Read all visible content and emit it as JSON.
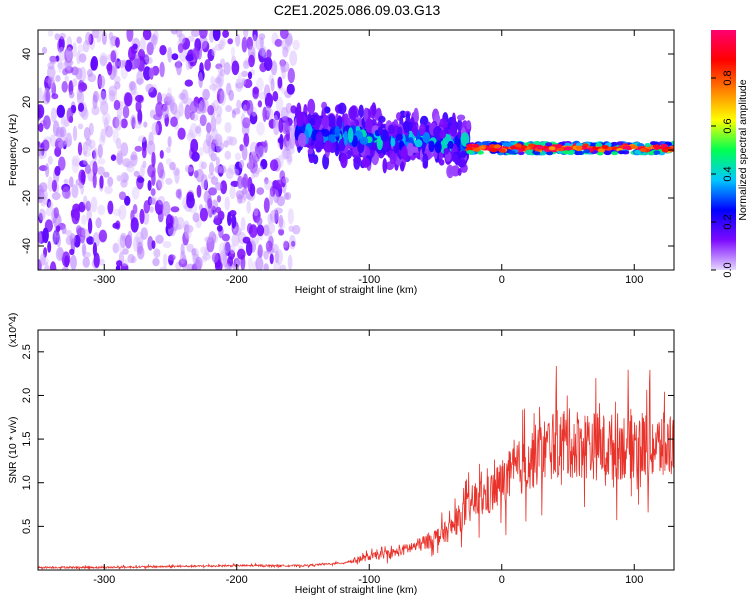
{
  "title": "C2E1.2025.086.09.03.G13",
  "colors": {
    "snr_line": "#e8322a",
    "spectrogram_low": "#c9b8f2",
    "spectrogram_mid": "#5a16e6",
    "colorbar_stops": [
      "#e6d8ff",
      "#7c0aff",
      "#0000ff",
      "#00c8ff",
      "#00ff50",
      "#ffff00",
      "#ff7f00",
      "#ff0000",
      "#ff0070"
    ]
  },
  "chart_data": [
    {
      "type": "heatmap",
      "title": "",
      "xlabel": "Height of straight line (km)",
      "ylabel": "Frequency (Hz)",
      "xlim": [
        -350,
        130
      ],
      "ylim": [
        -50,
        50
      ],
      "xticks": [
        -300,
        -200,
        -100,
        0,
        100
      ],
      "yticks": [
        -40,
        -20,
        0,
        20,
        40
      ],
      "colorbar": {
        "label": "Normalized spectral amplitude",
        "range": [
          0,
          1
        ],
        "ticks": [
          "0.0",
          "0.2",
          "0.4",
          "0.6",
          "0.8"
        ]
      },
      "regions": [
        {
          "x_range": [
            -350,
            -155
          ],
          "y_range": [
            -50,
            50
          ],
          "amplitude": 0.05,
          "note_level": "broad noise"
        },
        {
          "x_range": [
            -155,
            -25
          ],
          "y_range": [
            -12,
            12
          ],
          "amplitude": 0.25,
          "trend_y": [
            8,
            2
          ]
        },
        {
          "x_range": [
            -25,
            130
          ],
          "y_range": [
            -3,
            4
          ],
          "amplitude": 0.85
        }
      ]
    },
    {
      "type": "line",
      "title": "",
      "xlabel": "Height of straight line (km)",
      "ylabel": "SNR (10 * v/v)",
      "y_multiplier": "(x10^4)",
      "xlim": [
        -350,
        130
      ],
      "ylim": [
        0,
        2.75
      ],
      "xticks": [
        -300,
        -200,
        -100,
        0,
        100
      ],
      "yticks": [
        "0.5",
        "1.0",
        "1.5",
        "2.0",
        "2.5"
      ],
      "x": [
        -350,
        -300,
        -250,
        -200,
        -150,
        -120,
        -100,
        -80,
        -60,
        -40,
        -20,
        -10,
        0,
        20,
        40,
        60,
        80,
        100,
        120,
        130
      ],
      "y": [
        0.03,
        0.03,
        0.04,
        0.05,
        0.05,
        0.08,
        0.15,
        0.2,
        0.3,
        0.45,
        0.8,
        0.85,
        1.0,
        1.25,
        1.45,
        1.45,
        1.4,
        1.45,
        1.4,
        1.45
      ]
    }
  ]
}
